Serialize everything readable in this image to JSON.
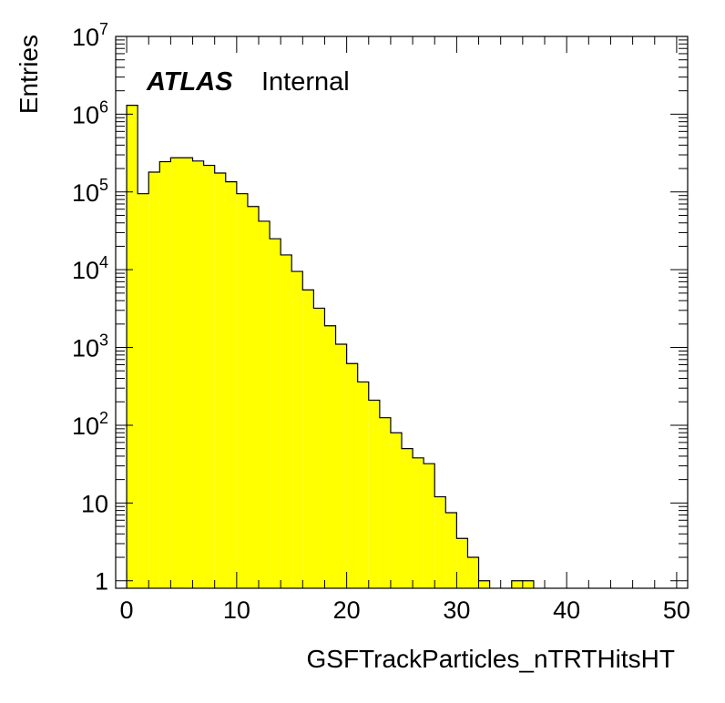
{
  "chart_data": {
    "type": "bar",
    "title": "",
    "xlabel": "GSFTrackParticles_nTRTHitsHT",
    "ylabel": "Entries",
    "xlim": [
      -1,
      51
    ],
    "ylim": [
      0.8,
      10000000
    ],
    "log_y": true,
    "grid": false,
    "fill_color": "#ffff00",
    "line_color": "#000000",
    "bin_width": 1,
    "bins_x_low": [
      0,
      1,
      2,
      3,
      4,
      5,
      6,
      7,
      8,
      9,
      10,
      11,
      12,
      13,
      14,
      15,
      16,
      17,
      18,
      19,
      20,
      21,
      22,
      23,
      24,
      25,
      26,
      27,
      28,
      29,
      30,
      31,
      32,
      33,
      34,
      35,
      36,
      37,
      38,
      39,
      40,
      41,
      42,
      43,
      44,
      45,
      46,
      47,
      48,
      49
    ],
    "values": [
      1300000,
      95000,
      180000,
      245000,
      275000,
      275000,
      250000,
      220000,
      175000,
      135000,
      95000,
      65000,
      42000,
      25000,
      15500,
      9500,
      5500,
      3200,
      1900,
      1100,
      620,
      360,
      210,
      125,
      80,
      50,
      38,
      32,
      12,
      7.5,
      3.5,
      2,
      1,
      0,
      0,
      1,
      1,
      0,
      0,
      0,
      0,
      0,
      0,
      0,
      0,
      0,
      0,
      0,
      0,
      0
    ],
    "x_ticks": [
      0,
      10,
      20,
      30,
      40,
      50
    ],
    "y_ticks": [
      {
        "value": 1,
        "base": "1",
        "exp": ""
      },
      {
        "value": 10,
        "base": "10",
        "exp": ""
      },
      {
        "value": 100,
        "base": "10",
        "exp": "2"
      },
      {
        "value": 1000,
        "base": "10",
        "exp": "3"
      },
      {
        "value": 10000,
        "base": "10",
        "exp": "4"
      },
      {
        "value": 100000,
        "base": "10",
        "exp": "5"
      },
      {
        "value": 1000000,
        "base": "10",
        "exp": "6"
      },
      {
        "value": 10000000,
        "base": "10",
        "exp": "7"
      }
    ],
    "annotation": {
      "atlas": "ATLAS",
      "status": "Internal"
    }
  }
}
